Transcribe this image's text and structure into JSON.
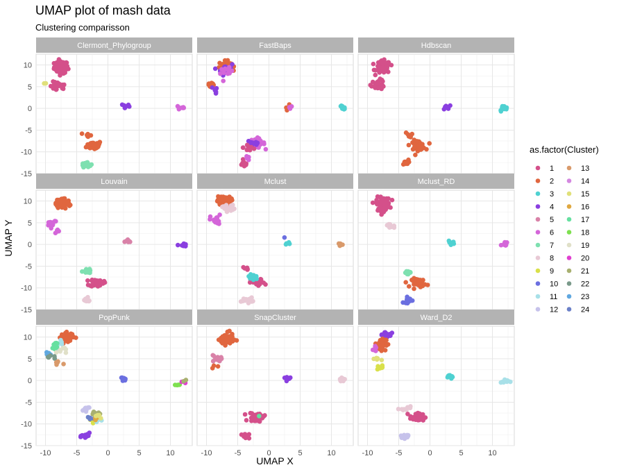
{
  "chart_data": {
    "type": "scatter",
    "title": "UMAP plot of mash data",
    "subtitle": "Clustering comparisson",
    "xlabel": "UMAP X",
    "ylabel": "UMAP Y",
    "xlim": [
      -11.5,
      13.5
    ],
    "ylim": [
      -15,
      12.5
    ],
    "xticks": [
      -10,
      -5,
      0,
      5,
      10
    ],
    "yticks": [
      -15,
      -10,
      -5,
      0,
      5,
      10
    ],
    "grid": true,
    "legend_position": "right",
    "legend_title": "as.factor(Cluster)",
    "legend_labels": [
      "1",
      "2",
      "3",
      "4",
      "5",
      "6",
      "7",
      "8",
      "9",
      "10",
      "11",
      "12",
      "13",
      "14",
      "15",
      "16",
      "17",
      "18",
      "19",
      "20",
      "21",
      "22",
      "23",
      "24"
    ],
    "legend_colors": [
      "#D4508A",
      "#E0663F",
      "#4FD1D1",
      "#8A3FE0",
      "#D982A8",
      "#D466D9",
      "#7EE0B0",
      "#E8C9D5",
      "#D9E04A",
      "#6B6FE0",
      "#A8E0E8",
      "#C6C2EB",
      "#D99A6B",
      "#D488E0",
      "#E0E07A",
      "#E0A840",
      "#66E0A0",
      "#7EE050",
      "#E0E0C8",
      "#E040D0",
      "#A8B070",
      "#7A9A8A",
      "#60A8E0",
      "#6B80C8"
    ],
    "panels": [
      {
        "name": "Clermont_Phylogroup",
        "groups": [
          {
            "c": 1,
            "cx": -7.5,
            "cy": 9.5,
            "sx": 1.0,
            "sy": 1.3,
            "n": 80
          },
          {
            "c": 1,
            "cx": -8.0,
            "cy": 5.0,
            "sx": 1.2,
            "sy": 1.0,
            "n": 25
          },
          {
            "c": 15,
            "cx": -10.0,
            "cy": 6.0,
            "sx": 0.2,
            "sy": 0.3,
            "n": 2
          },
          {
            "c": 4,
            "cx": 2.8,
            "cy": 0.5,
            "sx": 0.6,
            "sy": 0.6,
            "n": 8
          },
          {
            "c": 6,
            "cx": 11.8,
            "cy": 0.2,
            "sx": 0.5,
            "sy": 0.5,
            "n": 8
          },
          {
            "c": 2,
            "cx": -2.2,
            "cy": -8.5,
            "sx": 1.1,
            "sy": 0.9,
            "n": 45
          },
          {
            "c": 2,
            "cx": -3.2,
            "cy": -6.2,
            "sx": 0.5,
            "sy": 0.6,
            "n": 8
          },
          {
            "c": 7,
            "cx": -3.5,
            "cy": -12.8,
            "sx": 0.7,
            "sy": 0.6,
            "n": 18
          }
        ]
      },
      {
        "name": "FastBaps",
        "groups": [
          {
            "c": 2,
            "cx": -7.0,
            "cy": 9.8,
            "sx": 0.9,
            "sy": 1.0,
            "n": 40
          },
          {
            "c": 4,
            "cx": -7.0,
            "cy": 9.0,
            "sx": 1.0,
            "sy": 1.2,
            "n": 20
          },
          {
            "c": 6,
            "cx": -6.8,
            "cy": 8.2,
            "sx": 0.9,
            "sy": 1.0,
            "n": 12
          },
          {
            "c": 2,
            "cx": -9.3,
            "cy": 5.5,
            "sx": 0.6,
            "sy": 0.8,
            "n": 12
          },
          {
            "c": 4,
            "cx": -8.5,
            "cy": 4.3,
            "sx": 0.6,
            "sy": 0.7,
            "n": 6
          },
          {
            "c": 2,
            "cx": 3.0,
            "cy": 0.3,
            "sx": 0.5,
            "sy": 0.5,
            "n": 5
          },
          {
            "c": 6,
            "cx": 3.6,
            "cy": 0.3,
            "sx": 0.4,
            "sy": 0.3,
            "n": 3
          },
          {
            "c": 3,
            "cx": 11.8,
            "cy": 0.2,
            "sx": 0.6,
            "sy": 0.4,
            "n": 9
          },
          {
            "c": 6,
            "cx": -2.0,
            "cy": -8.0,
            "sx": 1.2,
            "sy": 1.0,
            "n": 40
          },
          {
            "c": 4,
            "cx": -2.5,
            "cy": -8.0,
            "sx": 1.0,
            "sy": 1.0,
            "n": 15
          },
          {
            "c": 1,
            "cx": -3.0,
            "cy": -9.0,
            "sx": 1.0,
            "sy": 1.0,
            "n": 10
          },
          {
            "c": 1,
            "cx": -4.0,
            "cy": -12.8,
            "sx": 0.6,
            "sy": 0.6,
            "n": 12
          },
          {
            "c": 6,
            "cx": -3.5,
            "cy": -11.5,
            "sx": 0.5,
            "sy": 0.4,
            "n": 4
          }
        ]
      },
      {
        "name": "Hdbscan",
        "groups": [
          {
            "c": 1,
            "cx": -7.5,
            "cy": 9.5,
            "sx": 1.0,
            "sy": 1.3,
            "n": 85
          },
          {
            "c": 1,
            "cx": -8.3,
            "cy": 5.5,
            "sx": 1.0,
            "sy": 1.0,
            "n": 25
          },
          {
            "c": 4,
            "cx": 2.8,
            "cy": 0.5,
            "sx": 0.6,
            "sy": 0.6,
            "n": 8
          },
          {
            "c": 3,
            "cx": 11.8,
            "cy": 0.0,
            "sx": 0.6,
            "sy": 0.6,
            "n": 12
          },
          {
            "c": 2,
            "cx": -2.0,
            "cy": -8.5,
            "sx": 1.1,
            "sy": 1.0,
            "n": 45
          },
          {
            "c": 2,
            "cx": -3.3,
            "cy": -6.0,
            "sx": 0.6,
            "sy": 0.5,
            "n": 6
          },
          {
            "c": 2,
            "cx": -4.0,
            "cy": -12.5,
            "sx": 0.5,
            "sy": 0.6,
            "n": 12
          }
        ]
      },
      {
        "name": "Louvain",
        "groups": [
          {
            "c": 2,
            "cx": -7.2,
            "cy": 9.5,
            "sx": 1.0,
            "sy": 1.2,
            "n": 80
          },
          {
            "c": 6,
            "cx": -9.0,
            "cy": 5.0,
            "sx": 0.8,
            "sy": 0.8,
            "n": 14
          },
          {
            "c": 6,
            "cx": -8.0,
            "cy": 3.0,
            "sx": 0.6,
            "sy": 0.4,
            "n": 5
          },
          {
            "c": 5,
            "cx": 3.2,
            "cy": 0.6,
            "sx": 0.5,
            "sy": 0.5,
            "n": 7
          },
          {
            "c": 4,
            "cx": 12.0,
            "cy": -0.2,
            "sx": 0.5,
            "sy": 0.4,
            "n": 10
          },
          {
            "c": 7,
            "cx": -3.3,
            "cy": -6.0,
            "sx": 0.7,
            "sy": 0.7,
            "n": 12
          },
          {
            "c": 1,
            "cx": -1.8,
            "cy": -8.8,
            "sx": 1.0,
            "sy": 0.8,
            "n": 40
          },
          {
            "c": 8,
            "cx": -3.5,
            "cy": -12.8,
            "sx": 0.8,
            "sy": 0.5,
            "n": 14
          }
        ]
      },
      {
        "name": "Mclust",
        "groups": [
          {
            "c": 2,
            "cx": -7.2,
            "cy": 10.0,
            "sx": 1.0,
            "sy": 1.0,
            "n": 60
          },
          {
            "c": 8,
            "cx": -6.5,
            "cy": 8.5,
            "sx": 0.9,
            "sy": 0.8,
            "n": 15
          },
          {
            "c": 6,
            "cx": -8.5,
            "cy": 5.5,
            "sx": 0.8,
            "sy": 1.2,
            "n": 20
          },
          {
            "c": 10,
            "cx": 2.5,
            "cy": 1.5,
            "sx": 0.2,
            "sy": 0.2,
            "n": 1
          },
          {
            "c": 3,
            "cx": 3.0,
            "cy": 0.0,
            "sx": 0.4,
            "sy": 0.4,
            "n": 4
          },
          {
            "c": 13,
            "cx": 11.5,
            "cy": 0.0,
            "sx": 0.5,
            "sy": 0.4,
            "n": 8
          },
          {
            "c": 1,
            "cx": -1.8,
            "cy": -8.8,
            "sx": 1.0,
            "sy": 0.8,
            "n": 25
          },
          {
            "c": 3,
            "cx": -2.5,
            "cy": -7.5,
            "sx": 0.9,
            "sy": 0.7,
            "n": 20
          },
          {
            "c": 1,
            "cx": -3.8,
            "cy": -5.5,
            "sx": 0.5,
            "sy": 0.4,
            "n": 5
          },
          {
            "c": 8,
            "cx": -3.5,
            "cy": -12.8,
            "sx": 0.8,
            "sy": 0.5,
            "n": 14
          }
        ]
      },
      {
        "name": "Mclust_RD",
        "groups": [
          {
            "c": 1,
            "cx": -7.5,
            "cy": 9.3,
            "sx": 1.0,
            "sy": 1.4,
            "n": 85
          },
          {
            "c": 8,
            "cx": -6.5,
            "cy": 4.2,
            "sx": 0.8,
            "sy": 0.5,
            "n": 10
          },
          {
            "c": 3,
            "cx": 3.5,
            "cy": 0.5,
            "sx": 0.5,
            "sy": 0.4,
            "n": 8
          },
          {
            "c": 6,
            "cx": 12.0,
            "cy": 0.0,
            "sx": 0.5,
            "sy": 0.6,
            "n": 9
          },
          {
            "c": 7,
            "cx": -3.3,
            "cy": -6.5,
            "sx": 0.7,
            "sy": 0.4,
            "n": 12
          },
          {
            "c": 2,
            "cx": -1.8,
            "cy": -8.8,
            "sx": 1.0,
            "sy": 0.9,
            "n": 40
          },
          {
            "c": 10,
            "cx": -3.5,
            "cy": -12.8,
            "sx": 0.7,
            "sy": 0.6,
            "n": 14
          }
        ]
      },
      {
        "name": "PopPunk",
        "groups": [
          {
            "c": 2,
            "cx": -6.5,
            "cy": 10.0,
            "sx": 0.9,
            "sy": 0.9,
            "n": 60
          },
          {
            "c": 11,
            "cx": -8.0,
            "cy": 8.5,
            "sx": 0.7,
            "sy": 1.0,
            "n": 8
          },
          {
            "c": 17,
            "cx": -8.5,
            "cy": 8.0,
            "sx": 0.6,
            "sy": 1.0,
            "n": 8
          },
          {
            "c": 19,
            "cx": -7.5,
            "cy": 7.0,
            "sx": 0.7,
            "sy": 0.8,
            "n": 8
          },
          {
            "c": 23,
            "cx": -9.5,
            "cy": 6.0,
            "sx": 0.5,
            "sy": 0.4,
            "n": 6
          },
          {
            "c": 22,
            "cx": -9.0,
            "cy": 5.5,
            "sx": 0.6,
            "sy": 0.5,
            "n": 6
          },
          {
            "c": 13,
            "cx": -8.0,
            "cy": 4.0,
            "sx": 0.6,
            "sy": 0.5,
            "n": 6
          },
          {
            "c": 10,
            "cx": 2.5,
            "cy": 0.3,
            "sx": 0.6,
            "sy": 0.6,
            "n": 8
          },
          {
            "c": 18,
            "cx": 11.0,
            "cy": -1.0,
            "sx": 0.5,
            "sy": 0.3,
            "n": 4
          },
          {
            "c": 20,
            "cx": 12.0,
            "cy": -0.5,
            "sx": 0.3,
            "sy": 0.3,
            "n": 2
          },
          {
            "c": 21,
            "cx": 12.3,
            "cy": -0.3,
            "sx": 0.3,
            "sy": 0.3,
            "n": 2
          },
          {
            "c": 12,
            "cx": -3.5,
            "cy": -6.5,
            "sx": 0.8,
            "sy": 0.5,
            "n": 10
          },
          {
            "c": 21,
            "cx": -2.0,
            "cy": -7.5,
            "sx": 0.8,
            "sy": 0.5,
            "n": 10
          },
          {
            "c": 9,
            "cx": -2.5,
            "cy": -9.0,
            "sx": 0.6,
            "sy": 0.6,
            "n": 6
          },
          {
            "c": 24,
            "cx": -2.8,
            "cy": -8.5,
            "sx": 0.6,
            "sy": 0.5,
            "n": 5
          },
          {
            "c": 11,
            "cx": -1.5,
            "cy": -9.5,
            "sx": 0.6,
            "sy": 0.5,
            "n": 5
          },
          {
            "c": 16,
            "cx": -2.0,
            "cy": -9.0,
            "sx": 0.5,
            "sy": 0.5,
            "n": 4
          },
          {
            "c": 15,
            "cx": -1.5,
            "cy": -8.0,
            "sx": 0.6,
            "sy": 0.5,
            "n": 5
          },
          {
            "c": 4,
            "cx": -3.5,
            "cy": -12.8,
            "sx": 0.6,
            "sy": 0.6,
            "n": 14
          }
        ]
      },
      {
        "name": "SnapCluster",
        "groups": [
          {
            "c": 2,
            "cx": -6.8,
            "cy": 9.5,
            "sx": 1.0,
            "sy": 1.2,
            "n": 75
          },
          {
            "c": 5,
            "cx": -8.5,
            "cy": 5.0,
            "sx": 0.8,
            "sy": 0.8,
            "n": 12
          },
          {
            "c": 2,
            "cx": -8.5,
            "cy": 3.0,
            "sx": 0.4,
            "sy": 0.3,
            "n": 3
          },
          {
            "c": 4,
            "cx": 2.8,
            "cy": 0.5,
            "sx": 0.6,
            "sy": 0.5,
            "n": 8
          },
          {
            "c": 8,
            "cx": 11.8,
            "cy": 0.2,
            "sx": 0.6,
            "sy": 0.3,
            "n": 8
          },
          {
            "c": 1,
            "cx": -2.0,
            "cy": -8.5,
            "sx": 1.1,
            "sy": 1.0,
            "n": 40
          },
          {
            "c": 1,
            "cx": -3.8,
            "cy": -12.8,
            "sx": 0.6,
            "sy": 0.5,
            "n": 12
          },
          {
            "c": 17,
            "cx": -1.5,
            "cy": -8.0,
            "sx": 0.3,
            "sy": 0.3,
            "n": 1
          }
        ]
      },
      {
        "name": "Ward_D2",
        "groups": [
          {
            "c": 4,
            "cx": -7.0,
            "cy": 10.5,
            "sx": 0.8,
            "sy": 0.7,
            "n": 30
          },
          {
            "c": 2,
            "cx": -7.8,
            "cy": 8.5,
            "sx": 0.7,
            "sy": 1.3,
            "n": 40
          },
          {
            "c": 6,
            "cx": -9.0,
            "cy": 7.0,
            "sx": 0.6,
            "sy": 0.8,
            "n": 5
          },
          {
            "c": 15,
            "cx": -8.5,
            "cy": 5.0,
            "sx": 0.5,
            "sy": 0.5,
            "n": 5
          },
          {
            "c": 9,
            "cx": -8.0,
            "cy": 3.0,
            "sx": 0.5,
            "sy": 0.4,
            "n": 8
          },
          {
            "c": 3,
            "cx": 3.0,
            "cy": 0.7,
            "sx": 0.6,
            "sy": 0.5,
            "n": 8
          },
          {
            "c": 11,
            "cx": 12.0,
            "cy": -0.2,
            "sx": 0.6,
            "sy": 0.5,
            "n": 12
          },
          {
            "c": 8,
            "cx": -4.0,
            "cy": -6.5,
            "sx": 0.8,
            "sy": 0.5,
            "n": 8
          },
          {
            "c": 1,
            "cx": -2.0,
            "cy": -8.5,
            "sx": 1.1,
            "sy": 0.9,
            "n": 40
          },
          {
            "c": 12,
            "cx": -3.8,
            "cy": -12.8,
            "sx": 0.8,
            "sy": 0.5,
            "n": 14
          }
        ]
      }
    ]
  }
}
